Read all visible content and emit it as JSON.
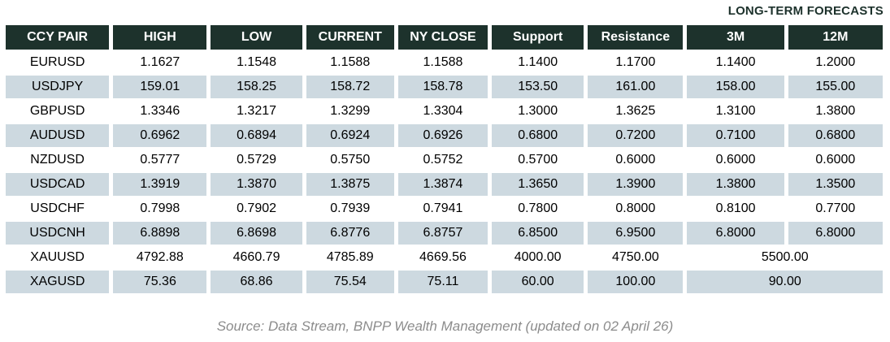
{
  "title": "LONG-TERM FORECASTS",
  "footer": {
    "source": "Source: Data Stream, BNPP Wealth Management (updated on 02 April 26)"
  },
  "colors": {
    "header_bg": "#1d322c",
    "header_text": "#ffffff",
    "alt_row_bg": "#cdd9e0",
    "body_text": "#000000",
    "title_color": "#1d322c",
    "source_color": "#8c8c8c"
  },
  "chart_data": {
    "type": "table",
    "title": "LONG-TERM FORECASTS",
    "columns": [
      "CCY PAIR",
      "HIGH",
      "LOW",
      "CURRENT",
      "NY CLOSE",
      "Support",
      "Resistance",
      "3M",
      "12M"
    ],
    "rows": [
      {
        "cells": [
          "EURUSD",
          "1.1627",
          "1.1548",
          "1.1588",
          "1.1588",
          "1.1400",
          "1.1700",
          "1.1400",
          "1.2000"
        ],
        "merged_forecast": null
      },
      {
        "cells": [
          "USDJPY",
          "159.01",
          "158.25",
          "158.72",
          "158.78",
          "153.50",
          "161.00",
          "158.00",
          "155.00"
        ],
        "merged_forecast": null
      },
      {
        "cells": [
          "GBPUSD",
          "1.3346",
          "1.3217",
          "1.3299",
          "1.3304",
          "1.3000",
          "1.3625",
          "1.3100",
          "1.3800"
        ],
        "merged_forecast": null
      },
      {
        "cells": [
          "AUDUSD",
          "0.6962",
          "0.6894",
          "0.6924",
          "0.6926",
          "0.6800",
          "0.7200",
          "0.7100",
          "0.6800"
        ],
        "merged_forecast": null
      },
      {
        "cells": [
          "NZDUSD",
          "0.5777",
          "0.5729",
          "0.5750",
          "0.5752",
          "0.5700",
          "0.6000",
          "0.6000",
          "0.6000"
        ],
        "merged_forecast": null
      },
      {
        "cells": [
          "USDCAD",
          "1.3919",
          "1.3870",
          "1.3875",
          "1.3874",
          "1.3650",
          "1.3900",
          "1.3800",
          "1.3500"
        ],
        "merged_forecast": null
      },
      {
        "cells": [
          "USDCHF",
          "0.7998",
          "0.7902",
          "0.7939",
          "0.7941",
          "0.7800",
          "0.8000",
          "0.8100",
          "0.7700"
        ],
        "merged_forecast": null
      },
      {
        "cells": [
          "USDCNH",
          "6.8898",
          "6.8698",
          "6.8776",
          "6.8757",
          "6.8500",
          "6.9500",
          "6.8000",
          "6.8000"
        ],
        "merged_forecast": null
      },
      {
        "cells": [
          "XAUUSD",
          "4792.88",
          "4660.79",
          "4785.89",
          "4669.56",
          "4000.00",
          "4750.00"
        ],
        "merged_forecast": "5500.00"
      },
      {
        "cells": [
          "XAGUSD",
          "75.36",
          "68.86",
          "75.54",
          "75.11",
          "60.00",
          "100.00"
        ],
        "merged_forecast": "90.00"
      }
    ],
    "layout_hints": {
      "long_term_forecast_columns": [
        "3M",
        "12M"
      ],
      "merged_forecast_rows": [
        "XAUUSD",
        "XAGUSD"
      ],
      "alternating_row_shading": true
    }
  }
}
